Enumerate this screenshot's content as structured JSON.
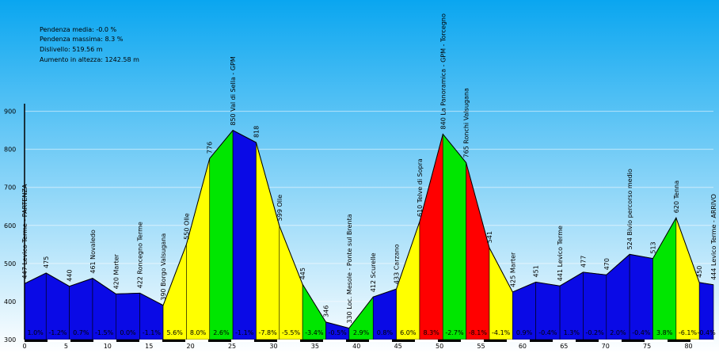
{
  "stats": [
    {
      "label": "Pendenza media:",
      "value": "-0.0 %"
    },
    {
      "label": "Pendenza massima:",
      "value": "8.3 %"
    },
    {
      "label": "Dislivello:",
      "value": "519.56 m"
    },
    {
      "label": "Aumento in altezza:",
      "value": "1242.58 m"
    }
  ],
  "chart_data": {
    "type": "area",
    "title": "",
    "xlabel": "",
    "ylabel": "",
    "xlim": [
      0,
      83
    ],
    "ylim": [
      300,
      920
    ],
    "yticks": [
      300,
      400,
      500,
      600,
      700,
      800,
      900
    ],
    "xticks": [
      0,
      5,
      10,
      15,
      20,
      25,
      30,
      35,
      40,
      45,
      50,
      55,
      60,
      65,
      70,
      75,
      80
    ],
    "grid": true,
    "colors": {
      "downhill_or_flat": "#0a0ae6",
      "gentle": "#00e600",
      "moderate": "#ffff00",
      "steep": "#ff0000",
      "sky_top": "#0aa6f0",
      "sky_bottom": "#ffffff"
    },
    "points": [
      {
        "x": 0.0,
        "y": 447
      },
      {
        "x": 2.6,
        "y": 475
      },
      {
        "x": 5.4,
        "y": 440
      },
      {
        "x": 8.2,
        "y": 461
      },
      {
        "x": 11.0,
        "y": 420
      },
      {
        "x": 13.9,
        "y": 422
      },
      {
        "x": 16.7,
        "y": 390
      },
      {
        "x": 19.5,
        "y": 550
      },
      {
        "x": 22.3,
        "y": 776
      },
      {
        "x": 25.1,
        "y": 850
      },
      {
        "x": 27.9,
        "y": 818
      },
      {
        "x": 30.7,
        "y": 599
      },
      {
        "x": 33.5,
        "y": 445
      },
      {
        "x": 36.3,
        "y": 346
      },
      {
        "x": 39.1,
        "y": 330
      },
      {
        "x": 42.0,
        "y": 412
      },
      {
        "x": 44.8,
        "y": 433
      },
      {
        "x": 47.6,
        "y": 610
      },
      {
        "x": 50.4,
        "y": 840
      },
      {
        "x": 53.2,
        "y": 765
      },
      {
        "x": 56.0,
        "y": 541
      },
      {
        "x": 58.8,
        "y": 425
      },
      {
        "x": 61.6,
        "y": 451
      },
      {
        "x": 64.5,
        "y": 441
      },
      {
        "x": 67.3,
        "y": 477
      },
      {
        "x": 70.1,
        "y": 470
      },
      {
        "x": 72.9,
        "y": 524
      },
      {
        "x": 75.7,
        "y": 513
      },
      {
        "x": 78.5,
        "y": 620
      },
      {
        "x": 81.3,
        "y": 450
      },
      {
        "x": 83.0,
        "y": 444
      }
    ],
    "waypoint_labels": [
      "447 Levico Terme - PARTENZA",
      "475",
      "440",
      "461 Novaledo",
      "420 Marter",
      "422 Roncegno Terme",
      "390 Borgo Valsugana",
      "550 Olle",
      "776",
      "850 Val di Sella - GPM",
      "818",
      "599 Olle",
      "445",
      "346",
      "330 Loc. Mesole - Ponte sul Brenta",
      "412 Scurelle",
      "433 Carzano",
      "610 Telve di Sopra",
      "840 La Panoramica - GPM - Torcegno",
      "765 Ronchi Valsugana",
      "541",
      "425 Marter",
      "451",
      "441 Levico Terme",
      "477",
      "470",
      "524 Bivio percorso medio",
      "513",
      "620 Tenna",
      "450",
      "444 Levico Terme - ARRIVO"
    ],
    "segments": [
      {
        "grade": "1.0%",
        "color_class": "downhill_or_flat"
      },
      {
        "grade": "-1.2%",
        "color_class": "downhill_or_flat"
      },
      {
        "grade": "0.7%",
        "color_class": "downhill_or_flat"
      },
      {
        "grade": "-1.5%",
        "color_class": "downhill_or_flat"
      },
      {
        "grade": "0.0%",
        "color_class": "downhill_or_flat"
      },
      {
        "grade": "-1.1%",
        "color_class": "downhill_or_flat"
      },
      {
        "grade": "5.6%",
        "color_class": "moderate"
      },
      {
        "grade": "8.0%",
        "color_class": "moderate"
      },
      {
        "grade": "2.6%",
        "color_class": "gentle"
      },
      {
        "grade": "-1.1%",
        "color_class": "downhill_or_flat"
      },
      {
        "grade": "-7.8%",
        "color_class": "moderate"
      },
      {
        "grade": "-5.5%",
        "color_class": "moderate"
      },
      {
        "grade": "-3.4%",
        "color_class": "gentle"
      },
      {
        "grade": "-0.5%",
        "color_class": "downhill_or_flat"
      },
      {
        "grade": "2.9%",
        "color_class": "gentle"
      },
      {
        "grade": "0.8%",
        "color_class": "downhill_or_flat"
      },
      {
        "grade": "6.0%",
        "color_class": "moderate"
      },
      {
        "grade": "8.3%",
        "color_class": "steep"
      },
      {
        "grade": "-2.7%",
        "color_class": "gentle"
      },
      {
        "grade": "-8.1%",
        "color_class": "steep"
      },
      {
        "grade": "-4.1%",
        "color_class": "moderate"
      },
      {
        "grade": "0.9%",
        "color_class": "downhill_or_flat"
      },
      {
        "grade": "-0.4%",
        "color_class": "downhill_or_flat"
      },
      {
        "grade": "1.3%",
        "color_class": "downhill_or_flat"
      },
      {
        "grade": "-0.2%",
        "color_class": "downhill_or_flat"
      },
      {
        "grade": "2.0%",
        "color_class": "downhill_or_flat"
      },
      {
        "grade": "-0.4%",
        "color_class": "downhill_or_flat"
      },
      {
        "grade": "3.8%",
        "color_class": "gentle"
      },
      {
        "grade": "-6.1%",
        "color_class": "moderate"
      },
      {
        "grade": "-0.4%",
        "color_class": "downhill_or_flat"
      }
    ]
  }
}
